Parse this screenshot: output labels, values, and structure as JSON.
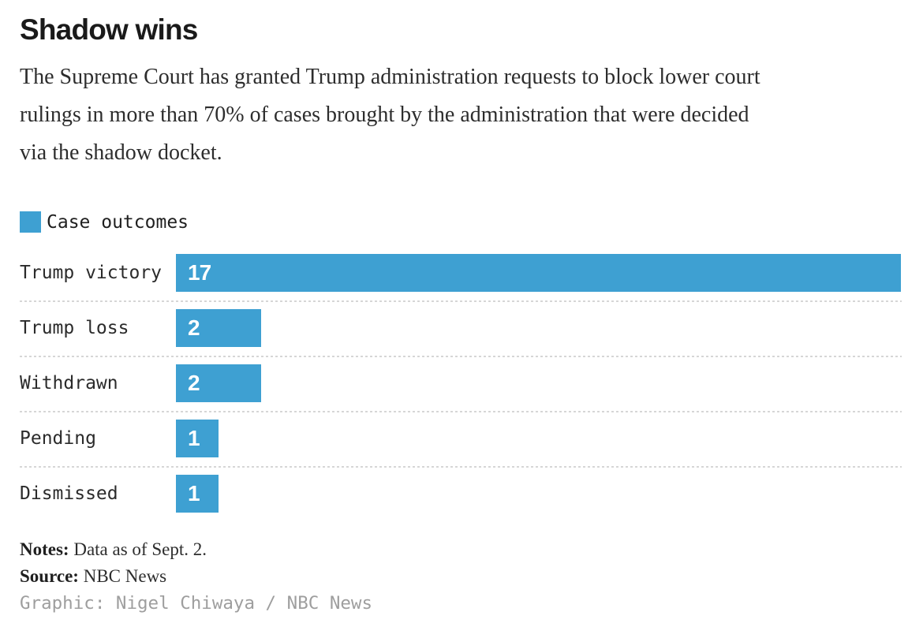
{
  "header": {
    "title": "Shadow wins",
    "description_lines": [
      "The Supreme Court has granted Trump administration requests to block lower court",
      "rulings in more than 70% of cases brought by the administration that were decided",
      "via the shadow docket."
    ]
  },
  "legend": {
    "label": "Case outcomes",
    "swatch_color": "#3EA0D2"
  },
  "chart_data": {
    "type": "bar",
    "orientation": "horizontal",
    "title": "Shadow wins",
    "series_label": "Case outcomes",
    "categories": [
      "Trump victory",
      "Trump loss",
      "Withdrawn",
      "Pending",
      "Dismissed"
    ],
    "values": [
      17,
      2,
      2,
      1,
      1
    ],
    "xlim": [
      0,
      17
    ],
    "bar_color": "#3EA0D2",
    "value_label_color": "#ffffff",
    "value_labels_inside": true,
    "grid": "off",
    "legend_position": "top-left"
  },
  "footer": {
    "notes_label": "Notes:",
    "notes_text": " Data as of Sept. 2.",
    "source_label": "Source:",
    "source_text": " NBC News",
    "credit": "Graphic: Nigel Chiwaya / NBC News"
  }
}
